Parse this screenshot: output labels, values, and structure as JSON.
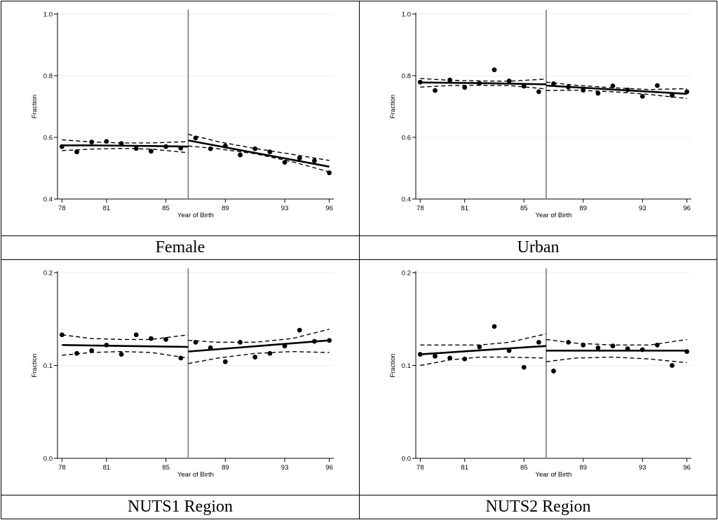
{
  "chart_data": [
    {
      "type": "scatter",
      "caption": "Female",
      "xlabel": "Year of Birth",
      "ylabel": "Fraction",
      "xlim": [
        77.7,
        96.3
      ],
      "ylim": [
        0.4,
        1.0
      ],
      "xticks": [
        "78",
        "81",
        "85",
        "89",
        "93",
        "96"
      ],
      "yticks": [
        "0.4",
        "0.6",
        "0.8",
        "1.0"
      ],
      "cutoff": 86.5,
      "points": {
        "x": [
          78,
          79,
          80,
          81,
          82,
          83,
          84,
          85,
          86,
          87,
          88,
          89,
          90,
          91,
          92,
          93,
          94,
          95,
          96
        ],
        "y": [
          0.57,
          0.553,
          0.585,
          0.587,
          0.58,
          0.564,
          0.555,
          0.57,
          0.565,
          0.598,
          0.563,
          0.572,
          0.543,
          0.563,
          0.553,
          0.519,
          0.533,
          0.524,
          0.485
        ]
      },
      "fit_left": {
        "x": [
          78,
          80,
          82,
          84,
          86.5
        ],
        "y": [
          0.574,
          0.574,
          0.573,
          0.572,
          0.57
        ]
      },
      "ci_left_upper": {
        "x": [
          78,
          80,
          82,
          84,
          86.5
        ],
        "y": [
          0.592,
          0.585,
          0.582,
          0.582,
          0.586
        ]
      },
      "ci_left_lower": {
        "x": [
          78,
          80,
          82,
          84,
          86.5
        ],
        "y": [
          0.557,
          0.562,
          0.564,
          0.562,
          0.55
        ]
      },
      "fit_right": {
        "x": [
          86.5,
          96
        ],
        "y": [
          0.59,
          0.505
        ]
      },
      "ci_right_upper": {
        "x": [
          86.5,
          88.5,
          91,
          93.5,
          96
        ],
        "y": [
          0.61,
          0.586,
          0.564,
          0.545,
          0.525
        ]
      },
      "ci_right_lower": {
        "x": [
          86.5,
          88.5,
          91,
          93.5,
          96
        ],
        "y": [
          0.572,
          0.563,
          0.547,
          0.521,
          0.488
        ]
      }
    },
    {
      "type": "scatter",
      "caption": "Urban",
      "xlabel": "Year of Birth",
      "ylabel": "Fraction",
      "xlim": [
        77.7,
        96.3
      ],
      "ylim": [
        0.4,
        1.0
      ],
      "xticks": [
        "78",
        "81",
        "85",
        "89",
        "93",
        "96"
      ],
      "yticks": [
        "0.4",
        "0.6",
        "0.8",
        "1.0"
      ],
      "cutoff": 86.5,
      "points": {
        "x": [
          78,
          79,
          80,
          81,
          82,
          83,
          84,
          85,
          86,
          87,
          88,
          89,
          90,
          91,
          92,
          93,
          94,
          95,
          96
        ],
        "y": [
          0.779,
          0.752,
          0.786,
          0.762,
          0.775,
          0.819,
          0.783,
          0.766,
          0.748,
          0.774,
          0.763,
          0.753,
          0.743,
          0.767,
          0.754,
          0.733,
          0.768,
          0.736,
          0.748
        ]
      },
      "fit_left": {
        "x": [
          78,
          82,
          86.5
        ],
        "y": [
          0.778,
          0.776,
          0.772
        ]
      },
      "ci_left_upper": {
        "x": [
          78,
          80,
          82,
          84,
          86.5
        ],
        "y": [
          0.791,
          0.785,
          0.783,
          0.782,
          0.789
        ]
      },
      "ci_left_lower": {
        "x": [
          78,
          80,
          82,
          84,
          86.5
        ],
        "y": [
          0.763,
          0.768,
          0.769,
          0.768,
          0.757
        ]
      },
      "fit_right": {
        "x": [
          86.5,
          96
        ],
        "y": [
          0.768,
          0.741
        ]
      },
      "ci_right_upper": {
        "x": [
          86.5,
          88.5,
          91,
          93.5,
          96
        ],
        "y": [
          0.779,
          0.769,
          0.761,
          0.755,
          0.758
        ]
      },
      "ci_right_lower": {
        "x": [
          86.5,
          88.5,
          91,
          93.5,
          96
        ],
        "y": [
          0.752,
          0.753,
          0.748,
          0.739,
          0.726
        ]
      }
    },
    {
      "type": "scatter",
      "caption": "NUTS1 Region",
      "xlabel": "Year of Birth",
      "ylabel": "Fraction",
      "xlim": [
        77.7,
        96.3
      ],
      "ylim": [
        0.0,
        0.2
      ],
      "xticks": [
        "78",
        "81",
        "85",
        "89",
        "93",
        "96"
      ],
      "yticks": [
        "0.0",
        "0.1",
        "0.2"
      ],
      "cutoff": 86.5,
      "points": {
        "x": [
          78,
          79,
          80,
          81,
          82,
          83,
          84,
          85,
          86,
          87,
          88,
          89,
          90,
          91,
          92,
          93,
          94,
          95,
          96
        ],
        "y": [
          0.133,
          0.113,
          0.116,
          0.122,
          0.112,
          0.133,
          0.129,
          0.128,
          0.108,
          0.125,
          0.119,
          0.104,
          0.125,
          0.109,
          0.113,
          0.121,
          0.138,
          0.126,
          0.127
        ]
      },
      "fit_left": {
        "x": [
          78,
          86.5
        ],
        "y": [
          0.122,
          0.12
        ]
      },
      "ci_left_upper": {
        "x": [
          78,
          80,
          82,
          84,
          86.5
        ],
        "y": [
          0.133,
          0.129,
          0.128,
          0.128,
          0.133
        ]
      },
      "ci_left_lower": {
        "x": [
          78,
          80,
          82,
          84,
          86.5
        ],
        "y": [
          0.111,
          0.114,
          0.115,
          0.114,
          0.108
        ]
      },
      "fit_right": {
        "x": [
          86.5,
          96
        ],
        "y": [
          0.115,
          0.127
        ]
      },
      "ci_right_upper": {
        "x": [
          86.5,
          88.5,
          91,
          93.5,
          96
        ],
        "y": [
          0.127,
          0.125,
          0.125,
          0.129,
          0.139
        ]
      },
      "ci_right_lower": {
        "x": [
          86.5,
          88.5,
          91,
          93.5,
          96
        ],
        "y": [
          0.102,
          0.108,
          0.113,
          0.115,
          0.114
        ]
      }
    },
    {
      "type": "scatter",
      "caption": "NUTS2 Region",
      "xlabel": "Year of Birth",
      "ylabel": "Fraction",
      "xlim": [
        77.7,
        96.3
      ],
      "ylim": [
        0.0,
        0.2
      ],
      "xticks": [
        "78",
        "81",
        "85",
        "89",
        "93",
        "96"
      ],
      "yticks": [
        "0.0",
        "0.1",
        "0.2"
      ],
      "cutoff": 86.5,
      "points": {
        "x": [
          78,
          79,
          80,
          81,
          82,
          83,
          84,
          85,
          86,
          87,
          88,
          89,
          90,
          91,
          92,
          93,
          94,
          95,
          96
        ],
        "y": [
          0.112,
          0.11,
          0.108,
          0.107,
          0.12,
          0.142,
          0.116,
          0.098,
          0.125,
          0.094,
          0.125,
          0.122,
          0.119,
          0.121,
          0.118,
          0.117,
          0.122,
          0.1,
          0.115
        ]
      },
      "fit_left": {
        "x": [
          78,
          86.5
        ],
        "y": [
          0.112,
          0.121
        ]
      },
      "ci_left_upper": {
        "x": [
          78,
          80,
          82,
          84,
          86.5
        ],
        "y": [
          0.122,
          0.122,
          0.122,
          0.125,
          0.134
        ]
      },
      "ci_left_lower": {
        "x": [
          78,
          80,
          82,
          84,
          86.5
        ],
        "y": [
          0.1,
          0.106,
          0.109,
          0.109,
          0.108
        ]
      },
      "fit_right": {
        "x": [
          86.5,
          96
        ],
        "y": [
          0.116,
          0.116
        ]
      },
      "ci_right_upper": {
        "x": [
          86.5,
          88.5,
          91,
          93.5,
          96
        ],
        "y": [
          0.128,
          0.124,
          0.122,
          0.122,
          0.128
        ]
      },
      "ci_right_lower": {
        "x": [
          86.5,
          88.5,
          91,
          93.5,
          96
        ],
        "y": [
          0.104,
          0.108,
          0.109,
          0.107,
          0.103
        ]
      }
    }
  ]
}
